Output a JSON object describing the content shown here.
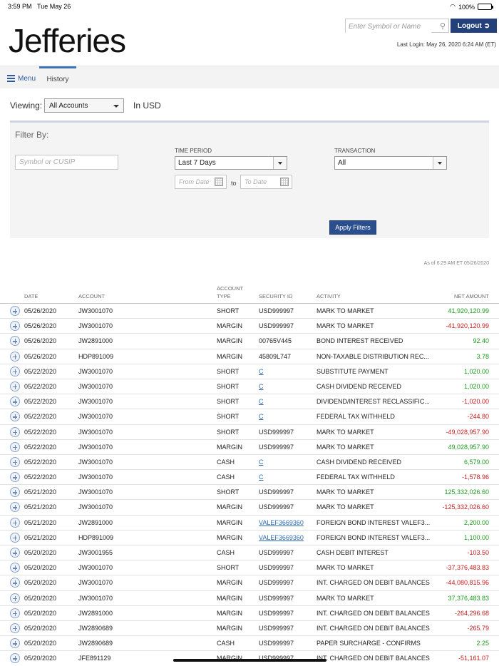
{
  "status_bar": {
    "time": "3:59 PM",
    "date": "Tue May 26",
    "battery": "100%"
  },
  "header": {
    "logo": "Jefferies",
    "search_placeholder": "Enter Symbol or Name",
    "logout_label": "Logout",
    "last_login": "Last Login: May 26, 2020 6:24 AM (ET)"
  },
  "nav": {
    "menu_label": "Menu",
    "history_tab": "History"
  },
  "viewing": {
    "label": "Viewing:",
    "selected": "All Accounts",
    "currency": "In USD"
  },
  "filter": {
    "title": "Filter By:",
    "symbol_placeholder": "Symbol or CUSIP",
    "time_period_label": "TIME PERIOD",
    "time_period_value": "Last 7 Days",
    "transaction_label": "TRANSACTION",
    "transaction_value": "All",
    "from_placeholder": "From Date",
    "to_placeholder": "To Date",
    "to_label": "to",
    "apply_label": "Apply Filters"
  },
  "as_of": "As of 6:29 AM ET 05/26/2020",
  "table": {
    "headers": {
      "date": "DATE",
      "account": "ACCOUNT",
      "account_type": "ACCOUNT\nTYPE",
      "security_id": "SECURITY ID",
      "activity": "ACTIVITY",
      "net_amount": "NET AMOUNT"
    },
    "rows": [
      {
        "date": "05/26/2020",
        "account": "JW3001070",
        "type": "SHORT",
        "security": "USD999997",
        "link": false,
        "activity": "MARK TO MARKET",
        "amount": "41,920,120.99",
        "sign": "pos"
      },
      {
        "date": "05/26/2020",
        "account": "JW3001070",
        "type": "MARGIN",
        "security": "USD999997",
        "link": false,
        "activity": "MARK TO MARKET",
        "amount": "-41,920,120.99",
        "sign": "neg"
      },
      {
        "date": "05/26/2020",
        "account": "JW2891000",
        "type": "MARGIN",
        "security": "00765V445",
        "link": false,
        "activity": "BOND INTEREST RECEIVED",
        "amount": "92.40",
        "sign": "pos"
      },
      {
        "date": "05/26/2020",
        "account": "HDP891009",
        "type": "MARGIN",
        "security": "45809L747",
        "link": false,
        "activity": "NON-TAXABLE DISTRIBUTION REC...",
        "amount": "3.78",
        "sign": "pos"
      },
      {
        "date": "05/22/2020",
        "account": "JW3001070",
        "type": "SHORT",
        "security": "C",
        "link": true,
        "activity": "SUBSTITUTE PAYMENT",
        "amount": "1,020.00",
        "sign": "pos"
      },
      {
        "date": "05/22/2020",
        "account": "JW3001070",
        "type": "SHORT",
        "security": "C",
        "link": true,
        "activity": "CASH DIVIDEND RECEIVED",
        "amount": "1,020.00",
        "sign": "pos"
      },
      {
        "date": "05/22/2020",
        "account": "JW3001070",
        "type": "SHORT",
        "security": "C",
        "link": true,
        "activity": "DIVIDEND/INTEREST RECLASSIFIC...",
        "amount": "-1,020.00",
        "sign": "neg"
      },
      {
        "date": "05/22/2020",
        "account": "JW3001070",
        "type": "SHORT",
        "security": "C",
        "link": true,
        "activity": "FEDERAL TAX WITHHELD",
        "amount": "-244.80",
        "sign": "neg"
      },
      {
        "date": "05/22/2020",
        "account": "JW3001070",
        "type": "SHORT",
        "security": "USD999997",
        "link": false,
        "activity": "MARK TO MARKET",
        "amount": "-49,028,957.90",
        "sign": "neg"
      },
      {
        "date": "05/22/2020",
        "account": "JW3001070",
        "type": "MARGIN",
        "security": "USD999997",
        "link": false,
        "activity": "MARK TO MARKET",
        "amount": "49,028,957.90",
        "sign": "pos"
      },
      {
        "date": "05/22/2020",
        "account": "JW3001070",
        "type": "CASH",
        "security": "C",
        "link": true,
        "activity": "CASH DIVIDEND RECEIVED",
        "amount": "6,579.00",
        "sign": "pos"
      },
      {
        "date": "05/22/2020",
        "account": "JW3001070",
        "type": "CASH",
        "security": "C",
        "link": true,
        "activity": "FEDERAL TAX WITHHELD",
        "amount": "-1,578.96",
        "sign": "neg"
      },
      {
        "date": "05/21/2020",
        "account": "JW3001070",
        "type": "SHORT",
        "security": "USD999997",
        "link": false,
        "activity": "MARK TO MARKET",
        "amount": "125,332,026.60",
        "sign": "pos"
      },
      {
        "date": "05/21/2020",
        "account": "JW3001070",
        "type": "MARGIN",
        "security": "USD999997",
        "link": false,
        "activity": "MARK TO MARKET",
        "amount": "-125,332,026.60",
        "sign": "neg"
      },
      {
        "date": "05/21/2020",
        "account": "JW2891000",
        "type": "MARGIN",
        "security": "VALEF3669360",
        "link": true,
        "activity": "FOREIGN BOND INTEREST VALEF3...",
        "amount": "2,200.00",
        "sign": "pos"
      },
      {
        "date": "05/21/2020",
        "account": "HDP891009",
        "type": "MARGIN",
        "security": "VALEF3669360",
        "link": true,
        "activity": "FOREIGN BOND INTEREST VALEF3...",
        "amount": "1,100.00",
        "sign": "pos"
      },
      {
        "date": "05/20/2020",
        "account": "JW3001955",
        "type": "CASH",
        "security": "USD999997",
        "link": false,
        "activity": "CASH DEBIT INTEREST",
        "amount": "-103.50",
        "sign": "neg"
      },
      {
        "date": "05/20/2020",
        "account": "JW3001070",
        "type": "SHORT",
        "security": "USD999997",
        "link": false,
        "activity": "MARK TO MARKET",
        "amount": "-37,376,483.83",
        "sign": "neg"
      },
      {
        "date": "05/20/2020",
        "account": "JW3001070",
        "type": "MARGIN",
        "security": "USD999997",
        "link": false,
        "activity": "INT. CHARGED ON DEBIT BALANCES",
        "amount": "-44,080,815.96",
        "sign": "neg"
      },
      {
        "date": "05/20/2020",
        "account": "JW3001070",
        "type": "MARGIN",
        "security": "USD999997",
        "link": false,
        "activity": "MARK TO MARKET",
        "amount": "37,376,483.83",
        "sign": "pos"
      },
      {
        "date": "05/20/2020",
        "account": "JW2891000",
        "type": "MARGIN",
        "security": "USD999997",
        "link": false,
        "activity": "INT. CHARGED ON DEBIT BALANCES",
        "amount": "-264,296.68",
        "sign": "neg"
      },
      {
        "date": "05/20/2020",
        "account": "JW2890689",
        "type": "MARGIN",
        "security": "USD999997",
        "link": false,
        "activity": "INT. CHARGED ON DEBIT BALANCES",
        "amount": "-265.79",
        "sign": "neg"
      },
      {
        "date": "05/20/2020",
        "account": "JW2890689",
        "type": "CASH",
        "security": "USD999997",
        "link": false,
        "activity": "PAPER SURCHARGE - CONFIRMS",
        "amount": "2.25",
        "sign": "pos"
      },
      {
        "date": "05/20/2020",
        "account": "JFE891129",
        "type": "MARGIN",
        "security": "USD999997",
        "link": false,
        "activity": "INT. CHARGED ON DEBIT BALANCES",
        "amount": "-51,161.07",
        "sign": "neg"
      }
    ]
  },
  "colors": {
    "brand_blue": "#23407a",
    "positive": "#1f9a1f",
    "negative": "#c41d1d",
    "link": "#2d6ab4"
  }
}
